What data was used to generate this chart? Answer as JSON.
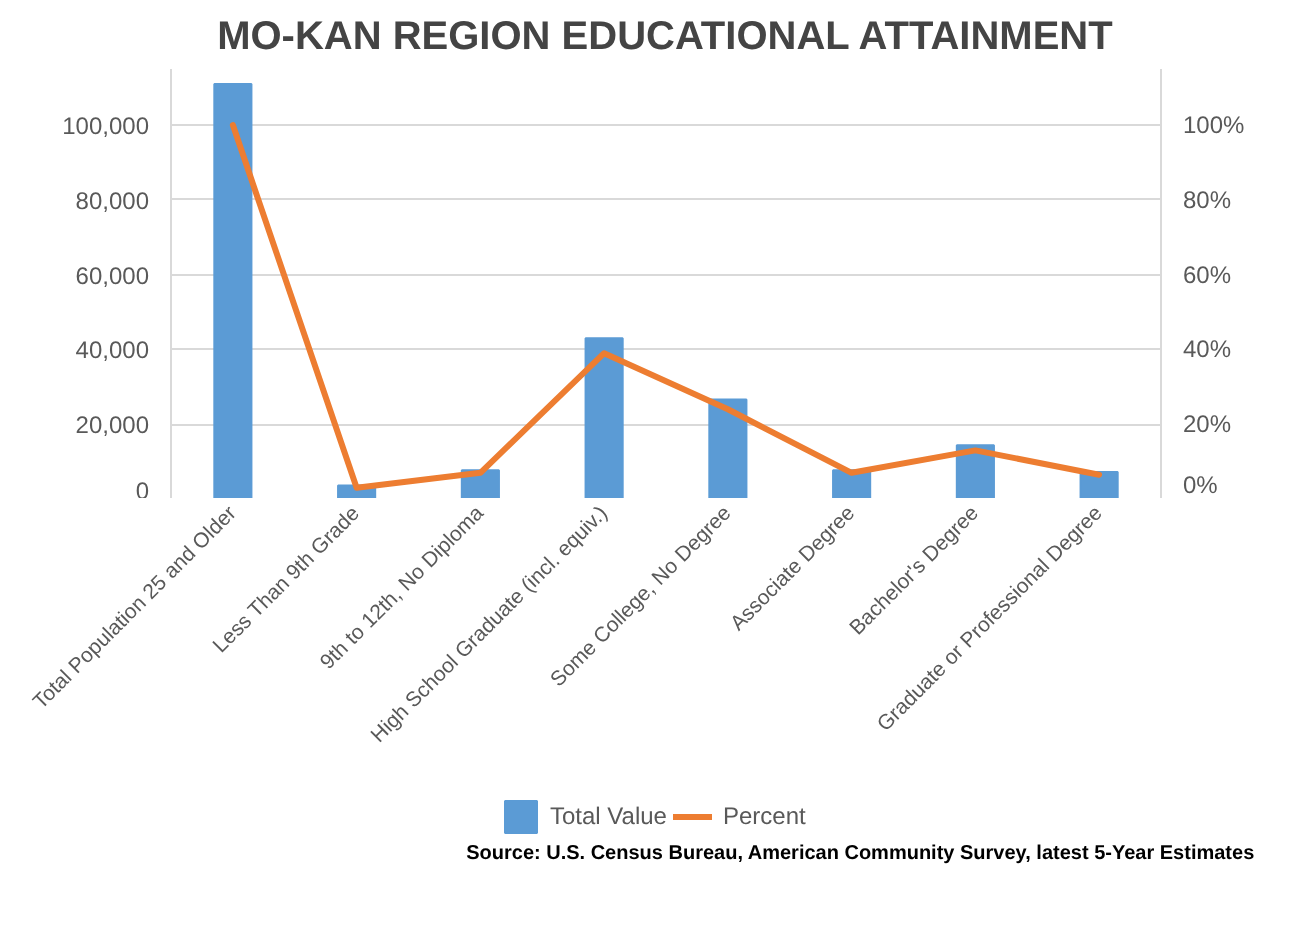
{
  "chart_data": {
    "type": "bar",
    "title": "MO-KAN REGION EDUCATIONAL ATTAINMENT",
    "categories": [
      "Total Population 25 and Older",
      "Less Than 9th Grade",
      "9th to 12th, No Diploma",
      "High School Graduate (incl. equiv.)",
      "Some College, No Degree",
      "Associate Degree",
      "Bachelor's Degree",
      "Graduate or Professional Degree"
    ],
    "series": [
      {
        "name": "Total Value",
        "color": "#5b9bd5",
        "values": [
          111000,
          3600,
          7700,
          43000,
          26600,
          7700,
          14400,
          7200
        ]
      },
      {
        "name": "Percent",
        "color": "#ed7d31",
        "type": "line",
        "axis": "y2",
        "values": [
          100,
          3,
          7,
          39,
          24,
          7,
          13,
          6.5
        ]
      }
    ],
    "ylim": [
      0,
      115000
    ],
    "yticks": [
      {
        "value": 0,
        "label": "0"
      },
      {
        "value": 20000,
        "label": "20,000"
      },
      {
        "value": 40000,
        "label": "40,000"
      },
      {
        "value": 60000,
        "label": "60,000"
      },
      {
        "value": 80000,
        "label": "80,000"
      },
      {
        "value": 100000,
        "label": "100,000"
      }
    ],
    "y2lim": [
      0,
      115
    ],
    "y2ticks": [
      {
        "value": 0,
        "label": "0%"
      },
      {
        "value": 20,
        "label": "20%"
      },
      {
        "value": 40,
        "label": "40%"
      },
      {
        "value": 60,
        "label": "60%"
      },
      {
        "value": 80,
        "label": "80%"
      },
      {
        "value": 100,
        "label": "100%"
      }
    ],
    "grid": "y",
    "legend": "bottom",
    "annotations": [
      "Source: U.S. Census Bureau, American Community Survey, latest 5-Year Estimates"
    ]
  }
}
